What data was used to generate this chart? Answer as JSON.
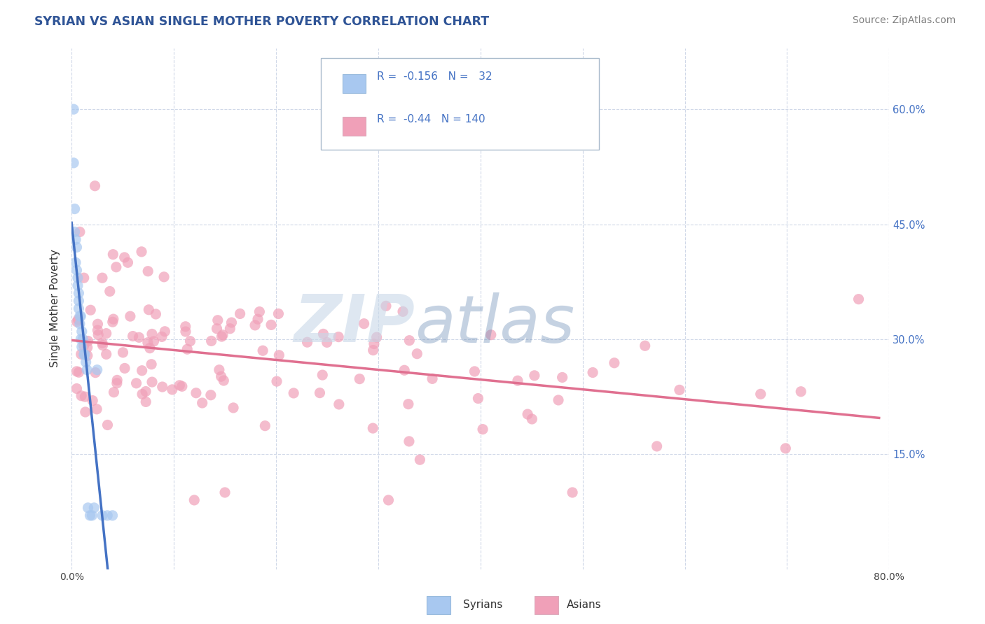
{
  "title": "SYRIAN VS ASIAN SINGLE MOTHER POVERTY CORRELATION CHART",
  "source_text": "Source: ZipAtlas.com",
  "ylabel": "Single Mother Poverty",
  "watermark_part1": "ZIP",
  "watermark_part2": "atlas",
  "xlim": [
    0.0,
    0.8
  ],
  "ylim": [
    0.0,
    0.68
  ],
  "xtick_positions": [
    0.0,
    0.1,
    0.2,
    0.3,
    0.4,
    0.5,
    0.6,
    0.7,
    0.8
  ],
  "xticklabels": [
    "0.0%",
    "",
    "",
    "",
    "",
    "",
    "",
    "",
    "80.0%"
  ],
  "ytick_positions": [
    0.15,
    0.3,
    0.45,
    0.6
  ],
  "ytick_labels": [
    "15.0%",
    "30.0%",
    "45.0%",
    "60.0%"
  ],
  "syrian_R": -0.156,
  "syrian_N": 32,
  "asian_R": -0.44,
  "asian_N": 140,
  "syrian_dot_color": "#A8C8F0",
  "asian_dot_color": "#F0A0B8",
  "syrian_line_color": "#4472C4",
  "asian_line_color": "#E07090",
  "dash_line_color": "#B8C8E0",
  "legend_text_color": "#4472C4",
  "title_color": "#2F5496",
  "source_color": "#808080",
  "grid_color": "#D0D8E8",
  "background_color": "#FFFFFF",
  "watermark_color1": "#C8D8E8",
  "watermark_color2": "#7090B8",
  "dot_size": 120,
  "dot_alpha": 0.7
}
